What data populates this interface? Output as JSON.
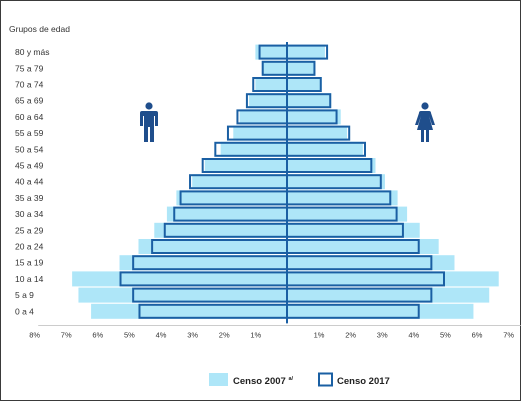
{
  "chart_data": {
    "type": "bar",
    "subtype": "population-pyramid",
    "y_axis_title": "Grupos de edad",
    "categories": [
      "80 y más",
      "75 a 79",
      "70 a 74",
      "65 a 69",
      "60 a 64",
      "55 a 59",
      "50 a 54",
      "45 a 49",
      "40 a 44",
      "35 a 39",
      "30 a 34",
      "25 a 29",
      "20 a 24",
      "15 a 19",
      "10 a 14",
      "5 a 9",
      "0 a 4"
    ],
    "x_tick_labels": [
      "8%",
      "7%",
      "6%",
      "5%",
      "4%",
      "3%",
      "2%",
      "1%",
      "1%",
      "2%",
      "3%",
      "4%",
      "5%",
      "6%",
      "7%",
      "8%"
    ],
    "xlim": [
      -8,
      8
    ],
    "legend_placement": "bottom",
    "series": [
      {
        "name": "Censo 2007",
        "legend_suffix": "a/",
        "color": "#aee6f8",
        "style": "filled",
        "male": [
          1.0,
          0.8,
          1.0,
          1.2,
          1.5,
          1.7,
          2.1,
          2.6,
          3.0,
          3.5,
          3.8,
          4.2,
          4.7,
          5.3,
          6.8,
          6.6,
          6.2
        ],
        "female": [
          1.2,
          0.9,
          1.1,
          1.4,
          1.7,
          1.9,
          2.4,
          2.8,
          3.1,
          3.5,
          3.8,
          4.2,
          4.8,
          5.3,
          6.7,
          6.4,
          5.9
        ]
      },
      {
        "name": "Censo 2017",
        "color": "#1a5fa3",
        "style": "outline",
        "male": [
          0.9,
          0.8,
          1.1,
          1.3,
          1.6,
          1.9,
          2.3,
          2.7,
          3.1,
          3.4,
          3.6,
          3.9,
          4.3,
          4.9,
          5.3,
          4.9,
          4.7
        ],
        "female": [
          1.3,
          0.9,
          1.1,
          1.4,
          1.6,
          2.0,
          2.5,
          2.7,
          3.0,
          3.3,
          3.5,
          3.7,
          4.2,
          4.6,
          5.0,
          4.6,
          4.2
        ]
      }
    ],
    "icons": {
      "left": "male-person-icon",
      "right": "female-person-icon"
    },
    "icon_color": "#1f4e8c"
  }
}
